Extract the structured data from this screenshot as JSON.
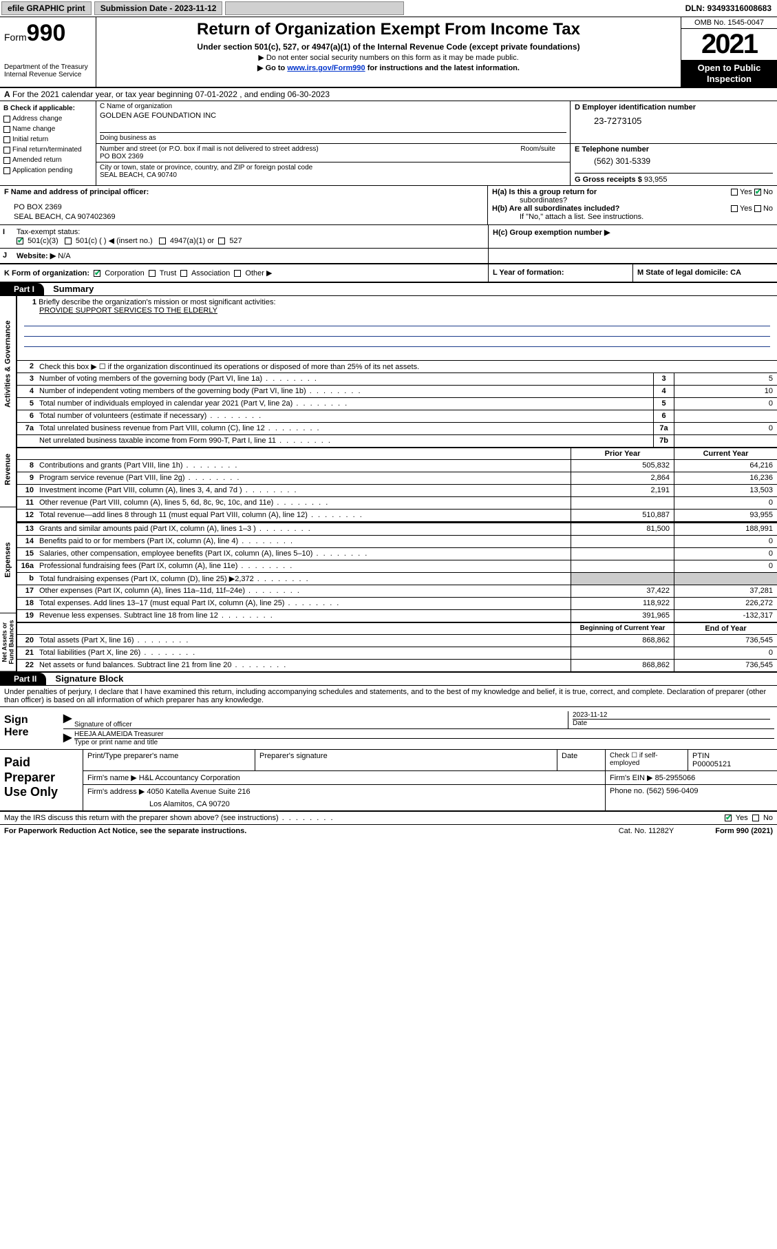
{
  "topbar": {
    "efile": "efile GRAPHIC print",
    "subdate_label": "Submission Date - 2023-11-12",
    "dln": "DLN: 93493316008683"
  },
  "header": {
    "form_prefix": "Form",
    "form_num": "990",
    "dept": "Department of the Treasury",
    "irs": "Internal Revenue Service",
    "title": "Return of Organization Exempt From Income Tax",
    "sub": "Under section 501(c), 527, or 4947(a)(1) of the Internal Revenue Code (except private foundations)",
    "note1": "▶ Do not enter social security numbers on this form as it may be made public.",
    "note2_pre": "▶ Go to ",
    "note2_link": "www.irs.gov/Form990",
    "note2_post": " for instructions and the latest information.",
    "omb": "OMB No. 1545-0047",
    "year": "2021",
    "open1": "Open to Public",
    "open2": "Inspection"
  },
  "row_a": {
    "label": "A",
    "text": "For the 2021 calendar year, or tax year beginning 07-01-2022   , and ending 06-30-2023"
  },
  "col_b": {
    "label": "B Check if applicable:",
    "items": [
      "Address change",
      "Name change",
      "Initial return",
      "Final return/terminated",
      "Amended return",
      "Application pending"
    ]
  },
  "col_c": {
    "name_label": "C Name of organization",
    "org": "GOLDEN AGE FOUNDATION INC",
    "dba_label": "Doing business as",
    "street_label": "Number and street (or P.O. box if mail is not delivered to street address)",
    "room_label": "Room/suite",
    "street": "PO BOX 2369",
    "city_label": "City or town, state or province, country, and ZIP or foreign postal code",
    "city": "SEAL BEACH, CA  90740"
  },
  "col_d": {
    "label": "D Employer identification number",
    "ein": "23-7273105"
  },
  "col_e": {
    "label": "E Telephone number",
    "phone": "(562) 301-5339",
    "gross_label": "G Gross receipts $",
    "gross": "93,955"
  },
  "row_f": {
    "label": "F  Name and address of principal officer:",
    "addr1": "PO BOX 2369",
    "addr2": "SEAL BEACH, CA  907402369"
  },
  "row_h": {
    "ha": "H(a)  Is this a group return for",
    "ha2": "subordinates?",
    "hb": "H(b)  Are all subordinates included?",
    "hb_note": "If \"No,\" attach a list. See instructions.",
    "hc": "H(c)  Group exemption number ▶"
  },
  "row_i": {
    "label": "I",
    "text": "Tax-exempt status:",
    "opts": [
      "501(c)(3)",
      "501(c) (  ) ◀ (insert no.)",
      "4947(a)(1) or",
      "527"
    ]
  },
  "row_j": {
    "label": "J",
    "text": "Website: ▶",
    "val": "N/A"
  },
  "row_k": {
    "label": "K Form of organization:",
    "opts": [
      "Corporation",
      "Trust",
      "Association",
      "Other ▶"
    ],
    "l_label": "L Year of formation:",
    "m_label": "M State of legal domicile: CA"
  },
  "parts": {
    "p1": "Part I",
    "p1_title": "Summary",
    "p2": "Part II",
    "p2_title": "Signature Block"
  },
  "summary": {
    "tabs": [
      "Activities & Governance",
      "Revenue",
      "Expenses",
      "Net Assets or Fund Balances"
    ],
    "line1_label": "Briefly describe the organization's mission or most significant activities:",
    "mission": "PROVIDE SUPPORT SERVICES TO THE ELDERLY",
    "line2": "Check this box ▶ ☐  if the organization discontinued its operations or disposed of more than 25% of its net assets.",
    "lines_gov": [
      {
        "n": "3",
        "t": "Number of voting members of the governing body (Part VI, line 1a)",
        "box": "3",
        "v": "5"
      },
      {
        "n": "4",
        "t": "Number of independent voting members of the governing body (Part VI, line 1b)",
        "box": "4",
        "v": "10"
      },
      {
        "n": "5",
        "t": "Total number of individuals employed in calendar year 2021 (Part V, line 2a)",
        "box": "5",
        "v": "0"
      },
      {
        "n": "6",
        "t": "Total number of volunteers (estimate if necessary)",
        "box": "6",
        "v": ""
      },
      {
        "n": "7a",
        "t": "Total unrelated business revenue from Part VIII, column (C), line 12",
        "box": "7a",
        "v": "0"
      },
      {
        "n": "",
        "t": "Net unrelated business taxable income from Form 990-T, Part I, line 11",
        "box": "7b",
        "v": ""
      }
    ],
    "col_prior": "Prior Year",
    "col_current": "Current Year",
    "lines_rev": [
      {
        "n": "8",
        "t": "Contributions and grants (Part VIII, line 1h)",
        "p": "505,832",
        "c": "64,216"
      },
      {
        "n": "9",
        "t": "Program service revenue (Part VIII, line 2g)",
        "p": "2,864",
        "c": "16,236"
      },
      {
        "n": "10",
        "t": "Investment income (Part VIII, column (A), lines 3, 4, and 7d )",
        "p": "2,191",
        "c": "13,503"
      },
      {
        "n": "11",
        "t": "Other revenue (Part VIII, column (A), lines 5, 6d, 8c, 9c, 10c, and 11e)",
        "p": "",
        "c": "0"
      },
      {
        "n": "12",
        "t": "Total revenue—add lines 8 through 11 (must equal Part VIII, column (A), line 12)",
        "p": "510,887",
        "c": "93,955"
      }
    ],
    "lines_exp": [
      {
        "n": "13",
        "t": "Grants and similar amounts paid (Part IX, column (A), lines 1–3 )",
        "p": "81,500",
        "c": "188,991"
      },
      {
        "n": "14",
        "t": "Benefits paid to or for members (Part IX, column (A), line 4)",
        "p": "",
        "c": "0"
      },
      {
        "n": "15",
        "t": "Salaries, other compensation, employee benefits (Part IX, column (A), lines 5–10)",
        "p": "",
        "c": "0"
      },
      {
        "n": "16a",
        "t": "Professional fundraising fees (Part IX, column (A), line 11e)",
        "p": "",
        "c": "0"
      },
      {
        "n": "b",
        "t": "Total fundraising expenses (Part IX, column (D), line 25) ▶2,372",
        "p": "shade",
        "c": "shade"
      },
      {
        "n": "17",
        "t": "Other expenses (Part IX, column (A), lines 11a–11d, 11f–24e)",
        "p": "37,422",
        "c": "37,281"
      },
      {
        "n": "18",
        "t": "Total expenses. Add lines 13–17 (must equal Part IX, column (A), line 25)",
        "p": "118,922",
        "c": "226,272"
      },
      {
        "n": "19",
        "t": "Revenue less expenses. Subtract line 18 from line 12",
        "p": "391,965",
        "c": "-132,317"
      }
    ],
    "col_begin": "Beginning of Current Year",
    "col_end": "End of Year",
    "lines_net": [
      {
        "n": "20",
        "t": "Total assets (Part X, line 16)",
        "p": "868,862",
        "c": "736,545"
      },
      {
        "n": "21",
        "t": "Total liabilities (Part X, line 26)",
        "p": "",
        "c": "0"
      },
      {
        "n": "22",
        "t": "Net assets or fund balances. Subtract line 21 from line 20",
        "p": "868,862",
        "c": "736,545"
      }
    ]
  },
  "sig": {
    "decl": "Under penalties of perjury, I declare that I have examined this return, including accompanying schedules and statements, and to the best of my knowledge and belief, it is true, correct, and complete. Declaration of preparer (other than officer) is based on all information of which preparer has any knowledge.",
    "sign_here": "Sign Here",
    "sig_officer": "Signature of officer",
    "date": "Date",
    "date_val": "2023-11-12",
    "name_title": "HEEJA ALAMEIDA  Treasurer",
    "name_label": "Type or print name and title"
  },
  "paid": {
    "label": "Paid Preparer Use Only",
    "h1": "Print/Type preparer's name",
    "h2": "Preparer's signature",
    "h3": "Date",
    "h4_check": "Check ☐ if self-employed",
    "h5": "PTIN",
    "ptin": "P00005121",
    "firm_name_l": "Firm's name    ▶",
    "firm_name": "H&L Accountancy Corporation",
    "firm_ein_l": "Firm's EIN ▶",
    "firm_ein": "85-2955066",
    "firm_addr_l": "Firm's address ▶",
    "firm_addr1": "4050 Katella Avenue Suite 216",
    "firm_addr2": "Los Alamitos, CA  90720",
    "phone_l": "Phone no.",
    "phone": "(562) 596-0409"
  },
  "may_irs": "May the IRS discuss this return with the preparer shown above? (see instructions)",
  "footer": {
    "f1": "For Paperwork Reduction Act Notice, see the separate instructions.",
    "f2": "Cat. No. 11282Y",
    "f3": "Form 990 (2021)"
  },
  "yes": "Yes",
  "no": "No"
}
